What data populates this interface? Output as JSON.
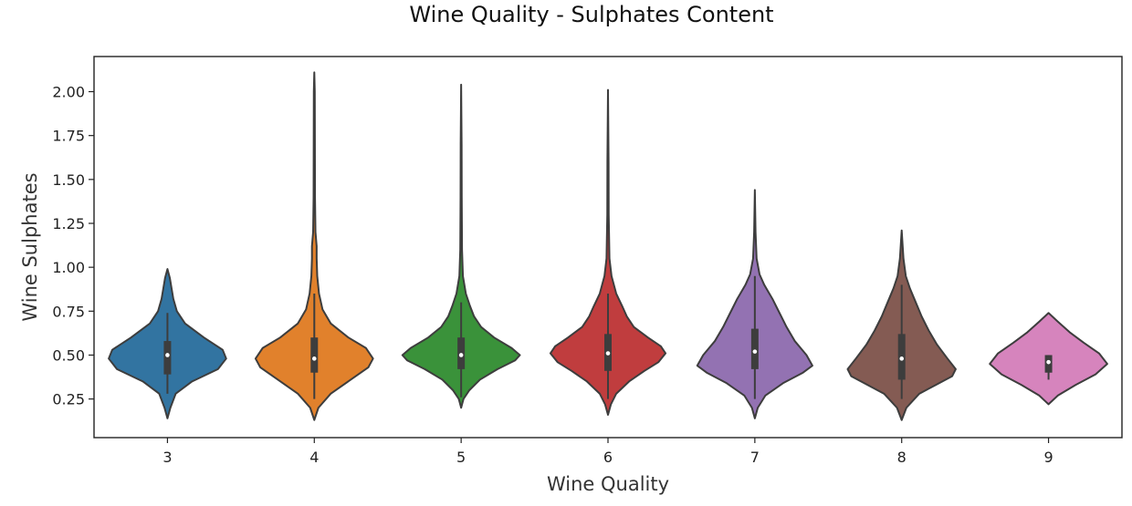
{
  "chart_data": {
    "type": "violin",
    "title": "Wine Quality - Sulphates Content",
    "xlabel": "Wine Quality",
    "ylabel": "Wine Sulphates",
    "ylim": [
      0.03,
      2.2
    ],
    "yticks": [
      "0.25",
      "0.50",
      "0.75",
      "1.00",
      "1.25",
      "1.50",
      "1.75",
      "2.00"
    ],
    "grid": false,
    "categories": [
      "3",
      "4",
      "5",
      "6",
      "7",
      "8",
      "9"
    ],
    "colors": [
      "#3274a1",
      "#e1812c",
      "#3a923a",
      "#c03d3e",
      "#9372b2",
      "#845b53",
      "#d684bd"
    ],
    "violins": [
      {
        "category": "3",
        "min": 0.14,
        "max": 0.99,
        "q1": 0.39,
        "median": 0.5,
        "q3": 0.58,
        "whisker_low": 0.28,
        "whisker_high": 0.74,
        "profile": [
          [
            0.14,
            0.0
          ],
          [
            0.2,
            0.05
          ],
          [
            0.28,
            0.14
          ],
          [
            0.35,
            0.42
          ],
          [
            0.42,
            0.86
          ],
          [
            0.48,
            1.0
          ],
          [
            0.53,
            0.94
          ],
          [
            0.6,
            0.62
          ],
          [
            0.68,
            0.3
          ],
          [
            0.75,
            0.16
          ],
          [
            0.82,
            0.1
          ],
          [
            0.88,
            0.07
          ],
          [
            0.94,
            0.04
          ],
          [
            0.99,
            0.0
          ]
        ]
      },
      {
        "category": "4",
        "min": 0.13,
        "max": 2.11,
        "q1": 0.4,
        "median": 0.48,
        "q3": 0.6,
        "whisker_low": 0.25,
        "whisker_high": 0.85,
        "profile": [
          [
            0.13,
            0.0
          ],
          [
            0.2,
            0.07
          ],
          [
            0.28,
            0.28
          ],
          [
            0.36,
            0.62
          ],
          [
            0.43,
            0.92
          ],
          [
            0.48,
            1.0
          ],
          [
            0.54,
            0.88
          ],
          [
            0.6,
            0.58
          ],
          [
            0.68,
            0.28
          ],
          [
            0.76,
            0.14
          ],
          [
            0.85,
            0.08
          ],
          [
            0.95,
            0.05
          ],
          [
            1.05,
            0.04
          ],
          [
            1.12,
            0.04
          ],
          [
            1.2,
            0.02
          ],
          [
            1.4,
            0.012
          ],
          [
            1.7,
            0.01
          ],
          [
            2.0,
            0.008
          ],
          [
            2.11,
            0.0
          ]
        ]
      },
      {
        "category": "5",
        "min": 0.2,
        "max": 2.04,
        "q1": 0.42,
        "median": 0.5,
        "q3": 0.6,
        "whisker_low": 0.26,
        "whisker_high": 0.8,
        "profile": [
          [
            0.2,
            0.0
          ],
          [
            0.25,
            0.04
          ],
          [
            0.3,
            0.14
          ],
          [
            0.36,
            0.32
          ],
          [
            0.42,
            0.62
          ],
          [
            0.47,
            0.92
          ],
          [
            0.5,
            1.0
          ],
          [
            0.54,
            0.86
          ],
          [
            0.6,
            0.56
          ],
          [
            0.66,
            0.34
          ],
          [
            0.72,
            0.22
          ],
          [
            0.78,
            0.15
          ],
          [
            0.85,
            0.08
          ],
          [
            0.95,
            0.03
          ],
          [
            1.1,
            0.015
          ],
          [
            1.4,
            0.01
          ],
          [
            1.7,
            0.008
          ],
          [
            2.04,
            0.0
          ]
        ]
      },
      {
        "category": "6",
        "min": 0.16,
        "max": 2.01,
        "q1": 0.41,
        "median": 0.51,
        "q3": 0.62,
        "whisker_low": 0.25,
        "whisker_high": 0.85,
        "profile": [
          [
            0.16,
            0.0
          ],
          [
            0.22,
            0.05
          ],
          [
            0.28,
            0.14
          ],
          [
            0.35,
            0.36
          ],
          [
            0.41,
            0.62
          ],
          [
            0.46,
            0.86
          ],
          [
            0.51,
            0.98
          ],
          [
            0.55,
            0.9
          ],
          [
            0.6,
            0.68
          ],
          [
            0.66,
            0.44
          ],
          [
            0.72,
            0.32
          ],
          [
            0.78,
            0.24
          ],
          [
            0.85,
            0.14
          ],
          [
            0.95,
            0.06
          ],
          [
            1.05,
            0.025
          ],
          [
            1.3,
            0.012
          ],
          [
            1.6,
            0.01
          ],
          [
            2.01,
            0.0
          ]
        ]
      },
      {
        "category": "7",
        "min": 0.14,
        "max": 1.44,
        "q1": 0.42,
        "median": 0.52,
        "q3": 0.65,
        "whisker_low": 0.25,
        "whisker_high": 0.95,
        "profile": [
          [
            0.14,
            0.0
          ],
          [
            0.2,
            0.05
          ],
          [
            0.27,
            0.18
          ],
          [
            0.34,
            0.48
          ],
          [
            0.4,
            0.82
          ],
          [
            0.44,
            0.98
          ],
          [
            0.5,
            0.88
          ],
          [
            0.58,
            0.68
          ],
          [
            0.66,
            0.54
          ],
          [
            0.74,
            0.42
          ],
          [
            0.82,
            0.3
          ],
          [
            0.9,
            0.16
          ],
          [
            0.96,
            0.08
          ],
          [
            1.05,
            0.03
          ],
          [
            1.2,
            0.012
          ],
          [
            1.44,
            0.0
          ]
        ]
      },
      {
        "category": "8",
        "min": 0.13,
        "max": 1.21,
        "q1": 0.36,
        "median": 0.48,
        "q3": 0.62,
        "whisker_low": 0.25,
        "whisker_high": 0.9,
        "profile": [
          [
            0.13,
            0.0
          ],
          [
            0.2,
            0.08
          ],
          [
            0.28,
            0.3
          ],
          [
            0.33,
            0.58
          ],
          [
            0.38,
            0.86
          ],
          [
            0.42,
            0.92
          ],
          [
            0.48,
            0.78
          ],
          [
            0.56,
            0.6
          ],
          [
            0.64,
            0.46
          ],
          [
            0.72,
            0.34
          ],
          [
            0.8,
            0.24
          ],
          [
            0.88,
            0.14
          ],
          [
            0.95,
            0.07
          ],
          [
            1.05,
            0.03
          ],
          [
            1.21,
            0.0
          ]
        ]
      },
      {
        "category": "9",
        "min": 0.22,
        "max": 0.74,
        "q1": 0.4,
        "median": 0.46,
        "q3": 0.5,
        "whisker_low": 0.36,
        "whisker_high": 0.5,
        "profile": [
          [
            0.22,
            0.0
          ],
          [
            0.27,
            0.16
          ],
          [
            0.33,
            0.46
          ],
          [
            0.39,
            0.8
          ],
          [
            0.45,
            1.0
          ],
          [
            0.51,
            0.86
          ],
          [
            0.57,
            0.6
          ],
          [
            0.63,
            0.36
          ],
          [
            0.69,
            0.16
          ],
          [
            0.74,
            0.0
          ]
        ]
      }
    ]
  }
}
